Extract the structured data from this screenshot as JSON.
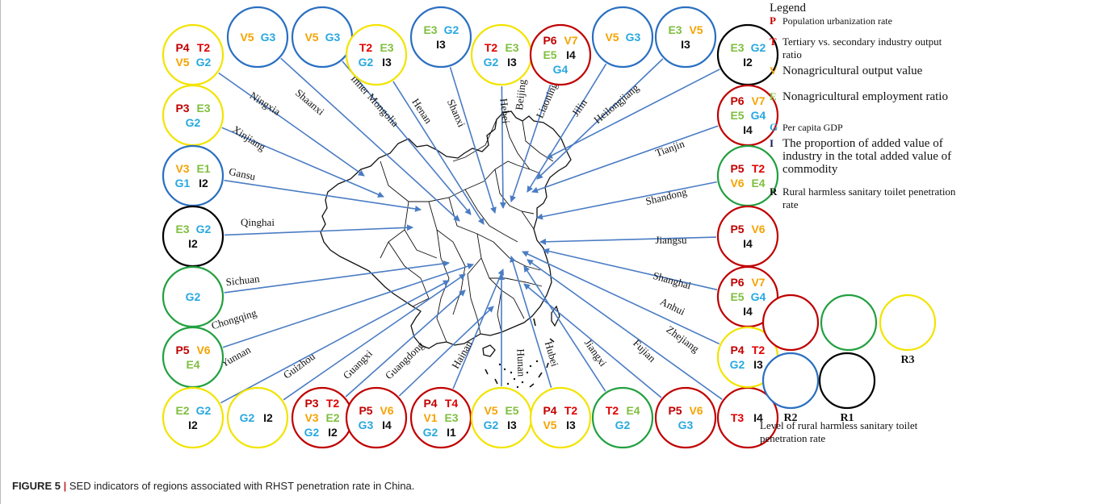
{
  "colors": {
    "P": "#c00000",
    "T": "#e00000",
    "V": "#f5a300",
    "E": "#7fbf3f",
    "G": "#29a8e0",
    "I": "#111111",
    "R5": "#c00000",
    "R4": "#22a040",
    "R3": "#f2e400",
    "R2": "#2a6fc1",
    "R1": "#000000",
    "arrow": "#4a7cc4"
  },
  "legend": {
    "title": "Legend",
    "items": [
      {
        "code": "P",
        "text": "Population urbanization rate"
      },
      {
        "code": "T",
        "text": "Tertiary vs. secondary industry output ratio"
      },
      {
        "code": "V",
        "text": "Nonagricultural output value"
      },
      {
        "code": "E",
        "text": "Nonagricultural employment ratio"
      },
      {
        "code": "G",
        "text": "Per capita GDP"
      },
      {
        "code": "I",
        "text": "The proportion of added value of industry in the total added value of commodity"
      },
      {
        "code": "R",
        "text": "Rural harmless sanitary toilet penetration rate"
      }
    ],
    "levels": [
      "R5",
      "R4",
      "R3",
      "R2",
      "R1"
    ],
    "levels_caption": "Level of rural harmless sanitary toilet penetration rate"
  },
  "regions": [
    {
      "name": "Ningxia",
      "level": "R3",
      "codes": [
        "P4",
        "T2",
        "V5",
        "G2"
      ]
    },
    {
      "name": "Shaanxi",
      "level": "R2",
      "codes": [
        "V5",
        "G3"
      ]
    },
    {
      "name": "Inner Mongolia",
      "level": "R2",
      "codes": [
        "V5",
        "G3"
      ]
    },
    {
      "name": "Henan",
      "level": "R3",
      "codes": [
        "T2",
        "E3",
        "G2",
        "I3"
      ]
    },
    {
      "name": "Shanxi",
      "level": "R2",
      "codes": [
        "E3",
        "G2",
        "I3"
      ]
    },
    {
      "name": "Hebei",
      "level": "R3",
      "codes": [
        "T2",
        "E3",
        "G2",
        "I3"
      ]
    },
    {
      "name": "Beijing",
      "level": "R5",
      "codes": [
        "P6",
        "V7",
        "E5",
        "I4",
        "G4"
      ]
    },
    {
      "name": "Liaoning",
      "level": "R2",
      "codes": [
        "V5",
        "G3"
      ]
    },
    {
      "name": "Jilin",
      "level": "R2",
      "codes": [
        "E3",
        "V5",
        "I3"
      ]
    },
    {
      "name": "Heilongjiang",
      "level": "R1",
      "codes": [
        "E3",
        "G2",
        "I2"
      ]
    },
    {
      "name": "Xinjiang",
      "level": "R3",
      "codes": [
        "P3",
        "E3",
        "G2"
      ]
    },
    {
      "name": "Gansu",
      "level": "R2",
      "codes": [
        "V3",
        "E1",
        "G1",
        "I2"
      ]
    },
    {
      "name": "Qinghai",
      "level": "R1",
      "codes": [
        "E3",
        "G2",
        "I2"
      ]
    },
    {
      "name": "Sichuan",
      "level": "R4",
      "codes": [
        "G2"
      ]
    },
    {
      "name": "Chongqing",
      "level": "R4",
      "codes": [
        "P5",
        "V6",
        "E4"
      ]
    },
    {
      "name": "Yunnan",
      "level": "R3",
      "codes": [
        "E2",
        "G2",
        "I2"
      ]
    },
    {
      "name": "Guizhou",
      "level": "R3",
      "codes": [
        "G2",
        "I2"
      ]
    },
    {
      "name": "Guangxi",
      "level": "R5",
      "codes": [
        "P3",
        "T2",
        "V3",
        "E2",
        "G2",
        "I2"
      ]
    },
    {
      "name": "Guangdong",
      "level": "R5",
      "codes": [
        "P5",
        "V6",
        "G3",
        "I4"
      ]
    },
    {
      "name": "Hainan",
      "level": "R5",
      "codes": [
        "P4",
        "T4",
        "V1",
        "E3",
        "G2",
        "I1"
      ]
    },
    {
      "name": "Hunan",
      "level": "R3",
      "codes": [
        "V5",
        "E5",
        "G2",
        "I3"
      ]
    },
    {
      "name": "Hubei",
      "level": "R3",
      "codes": [
        "P4",
        "T2",
        "V5",
        "I3"
      ]
    },
    {
      "name": "Jiangxi",
      "level": "R4",
      "codes": [
        "T2",
        "E4",
        "G2"
      ]
    },
    {
      "name": "Fujian",
      "level": "R5",
      "codes": [
        "P5",
        "V6",
        "G3"
      ]
    },
    {
      "name": "Zhejiang",
      "level": "R5",
      "codes": [
        "T3",
        "I4"
      ]
    },
    {
      "name": "Tianjin",
      "level": "R5",
      "codes": [
        "P6",
        "V7",
        "E5",
        "G4",
        "I4"
      ]
    },
    {
      "name": "Shandong",
      "level": "R4",
      "codes": [
        "P5",
        "T2",
        "V6",
        "E4"
      ]
    },
    {
      "name": "Jiangsu",
      "level": "R5",
      "codes": [
        "P5",
        "V6",
        "I4"
      ]
    },
    {
      "name": "Shanghai",
      "level": "R5",
      "codes": [
        "P6",
        "V7",
        "E5",
        "G4",
        "I4"
      ]
    },
    {
      "name": "Anhui",
      "level": "R3",
      "codes": [
        "P4",
        "T2",
        "G2",
        "I3"
      ]
    }
  ],
  "caption": {
    "label": "FIGURE 5",
    "separator": "|",
    "text": "SED indicators of regions associated with RHST penetration rate in China."
  }
}
